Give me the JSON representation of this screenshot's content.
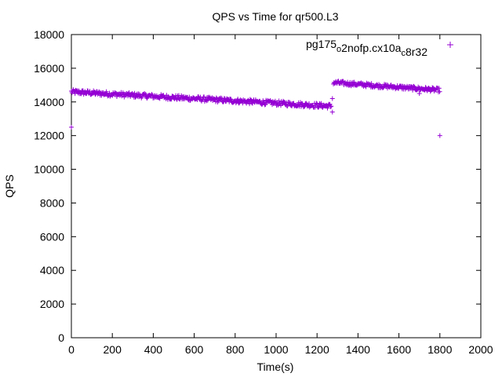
{
  "chart_data": {
    "type": "scatter",
    "title": "QPS vs Time for qr500.L3",
    "xlabel": "Time(s)",
    "ylabel": "QPS",
    "xlim": [
      0,
      2000
    ],
    "ylim": [
      0,
      18000
    ],
    "xticks": [
      0,
      200,
      400,
      600,
      800,
      1000,
      1200,
      1400,
      1600,
      1800,
      2000
    ],
    "yticks": [
      0,
      2000,
      4000,
      6000,
      8000,
      10000,
      12000,
      14000,
      16000,
      18000
    ],
    "grid": false,
    "legend_position": "top-right",
    "marker": "plus",
    "series": [
      {
        "name": "pg175_o2nofp.cx10a_c8r32",
        "legend_parts": [
          {
            "text": "pg175",
            "sub": false
          },
          {
            "text": "o",
            "sub": true
          },
          {
            "text": "2nofp.cx10a",
            "sub": false
          },
          {
            "text": "c",
            "sub": true
          },
          {
            "text": "8r32",
            "sub": false
          }
        ],
        "color": "#9400D3",
        "segments": [
          {
            "x_start": 0,
            "x_end": 1270,
            "step": 3,
            "y_start": 14600,
            "y_end": 13750,
            "jitter": 140
          },
          {
            "x_start": 1280,
            "x_end": 1800,
            "step": 3,
            "y_start": 15150,
            "y_end": 14700,
            "jitter": 120
          }
        ],
        "outliers": [
          {
            "x": 0,
            "y": 12500
          },
          {
            "x": 1275,
            "y": 14200
          },
          {
            "x": 1275,
            "y": 13400
          },
          {
            "x": 1700,
            "y": 14500
          },
          {
            "x": 1800,
            "y": 12000
          }
        ]
      }
    ]
  }
}
